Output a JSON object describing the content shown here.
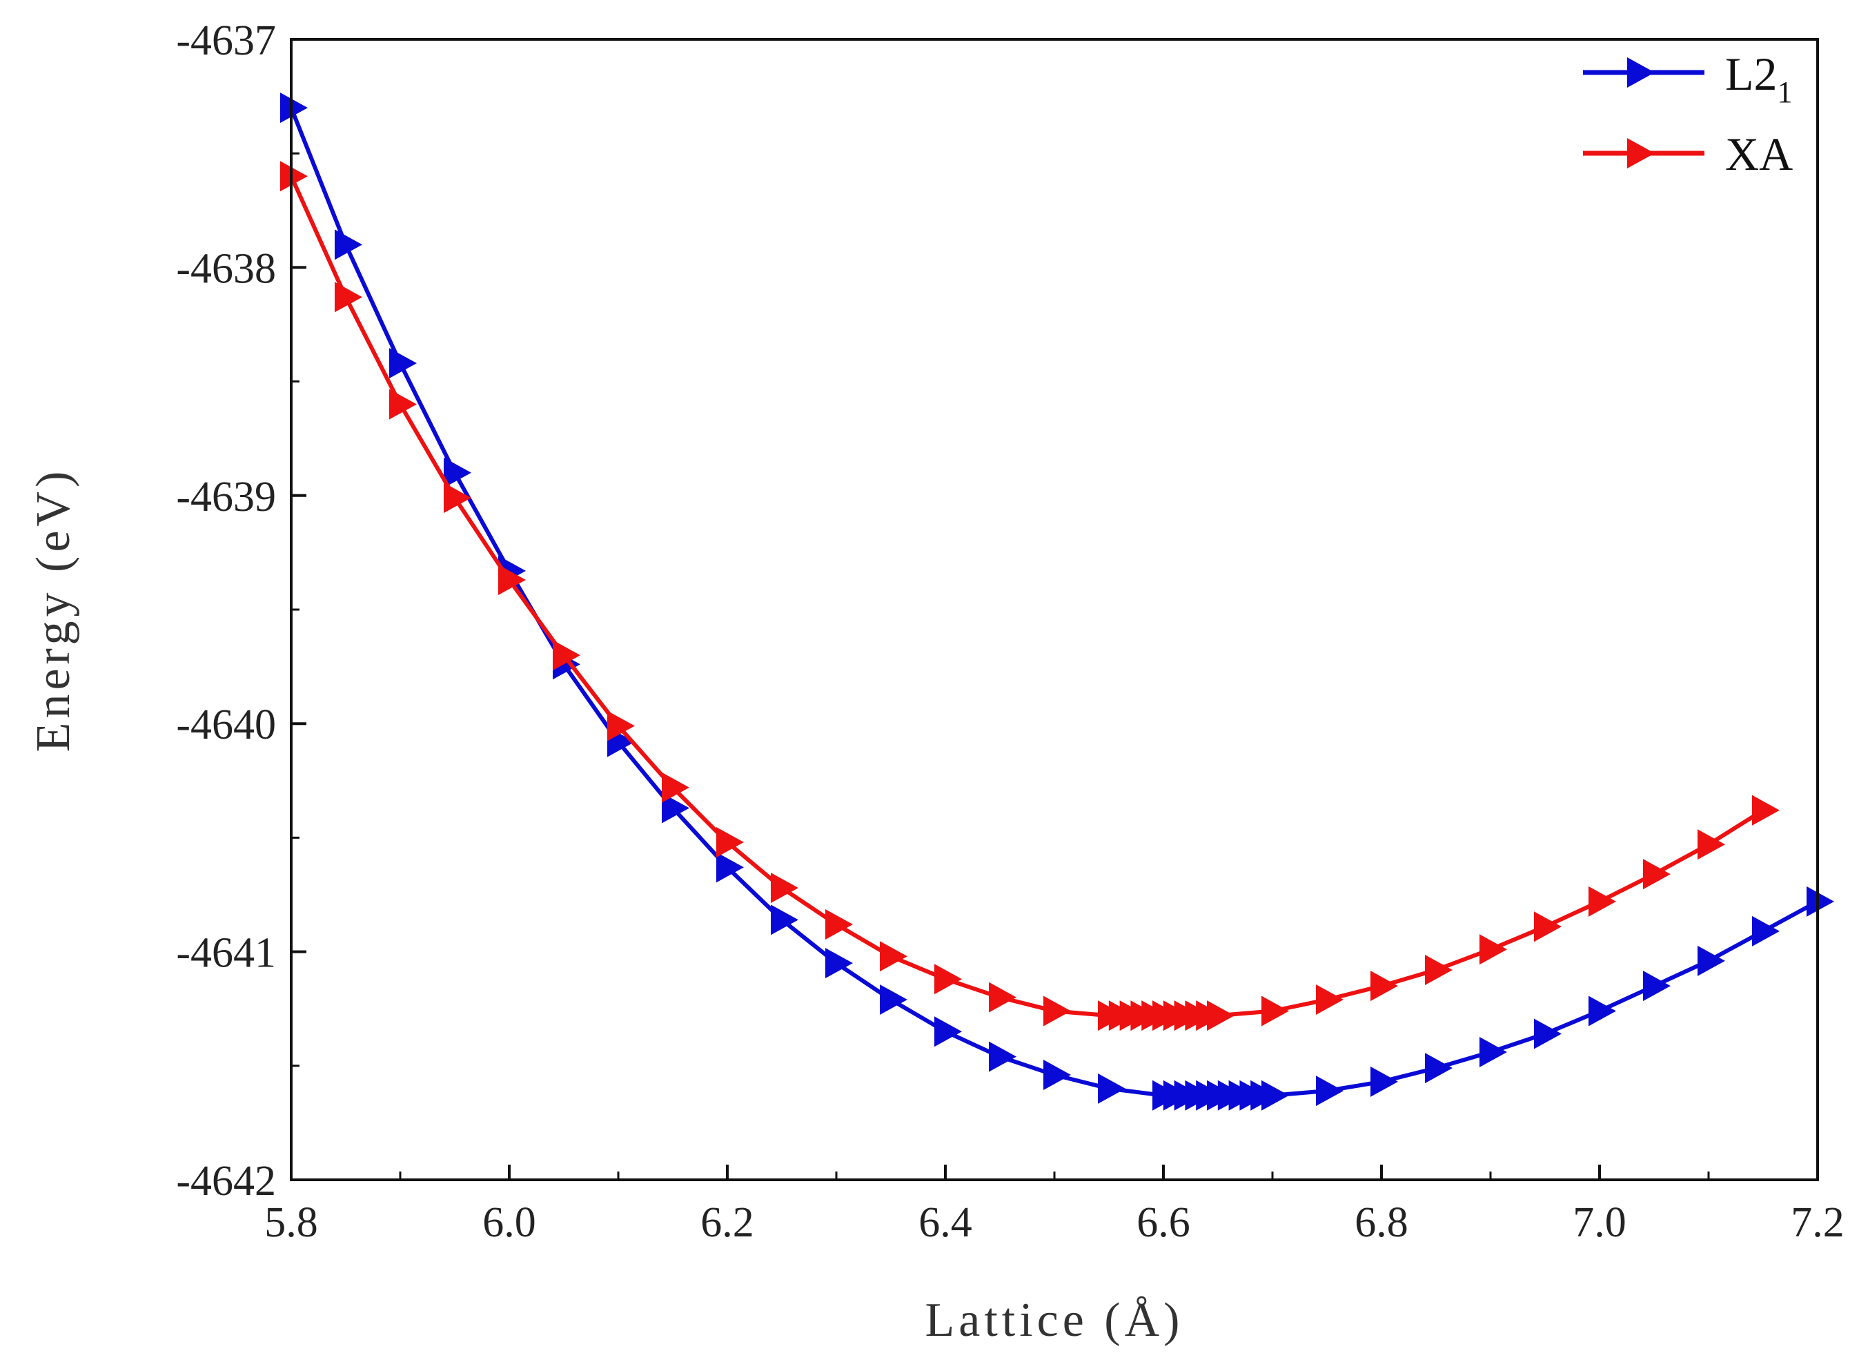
{
  "chart_data": {
    "type": "line",
    "title": "",
    "xlabel": "Lattice (Å)",
    "ylabel": "Energy (eV)",
    "xlim": [
      5.8,
      7.2
    ],
    "ylim": [
      -4642,
      -4637
    ],
    "xticks": [
      5.8,
      6.0,
      6.2,
      6.4,
      6.6,
      6.8,
      7.0,
      7.2
    ],
    "xtick_labels": [
      "5.8",
      "6.0",
      "6.2",
      "6.4",
      "6.6",
      "6.8",
      "7.0",
      "7.2"
    ],
    "yticks": [
      -4642,
      -4641,
      -4640,
      -4639,
      -4638,
      -4637
    ],
    "ytick_labels": [
      "-4642",
      "-4641",
      "-4640",
      "-4639",
      "-4638",
      "-4637"
    ],
    "legend_position": "top-right",
    "series": [
      {
        "name": "L2",
        "name_subscript": "1",
        "color": "#0a0ad6",
        "marker": "triangle-right",
        "x": [
          5.8,
          5.85,
          5.9,
          5.95,
          6.0,
          6.05,
          6.1,
          6.15,
          6.2,
          6.25,
          6.3,
          6.35,
          6.4,
          6.45,
          6.5,
          6.55,
          6.6,
          6.61,
          6.62,
          6.63,
          6.64,
          6.65,
          6.66,
          6.67,
          6.68,
          6.69,
          6.7,
          6.75,
          6.8,
          6.85,
          6.9,
          6.95,
          7.0,
          7.05,
          7.1,
          7.15,
          7.2
        ],
        "y": [
          -4637.3,
          -4637.9,
          -4638.42,
          -4638.9,
          -4639.33,
          -4639.74,
          -4640.08,
          -4640.37,
          -4640.63,
          -4640.86,
          -4641.05,
          -4641.21,
          -4641.35,
          -4641.46,
          -4641.54,
          -4641.6,
          -4641.63,
          -4641.63,
          -4641.63,
          -4641.63,
          -4641.63,
          -4641.63,
          -4641.63,
          -4641.63,
          -4641.63,
          -4641.63,
          -4641.63,
          -4641.61,
          -4641.57,
          -4641.51,
          -4641.44,
          -4641.36,
          -4641.26,
          -4641.15,
          -4641.04,
          -4640.91,
          -4640.78
        ]
      },
      {
        "name": "XA",
        "color": "#ee1111",
        "marker": "triangle-right",
        "x": [
          5.8,
          5.85,
          5.9,
          5.95,
          6.0,
          6.05,
          6.1,
          6.15,
          6.2,
          6.25,
          6.3,
          6.35,
          6.4,
          6.45,
          6.5,
          6.55,
          6.56,
          6.57,
          6.58,
          6.59,
          6.6,
          6.61,
          6.62,
          6.63,
          6.64,
          6.65,
          6.7,
          6.75,
          6.8,
          6.85,
          6.9,
          6.95,
          7.0,
          7.05,
          7.1,
          7.15
        ],
        "y": [
          -4637.6,
          -4638.13,
          -4638.6,
          -4639.01,
          -4639.37,
          -4639.7,
          -4640.01,
          -4640.28,
          -4640.52,
          -4640.72,
          -4640.88,
          -4641.02,
          -4641.12,
          -4641.2,
          -4641.26,
          -4641.28,
          -4641.28,
          -4641.28,
          -4641.28,
          -4641.28,
          -4641.28,
          -4641.28,
          -4641.28,
          -4641.28,
          -4641.28,
          -4641.28,
          -4641.26,
          -4641.21,
          -4641.15,
          -4641.08,
          -4640.99,
          -4640.89,
          -4640.78,
          -4640.66,
          -4640.53,
          -4640.38
        ]
      }
    ]
  }
}
